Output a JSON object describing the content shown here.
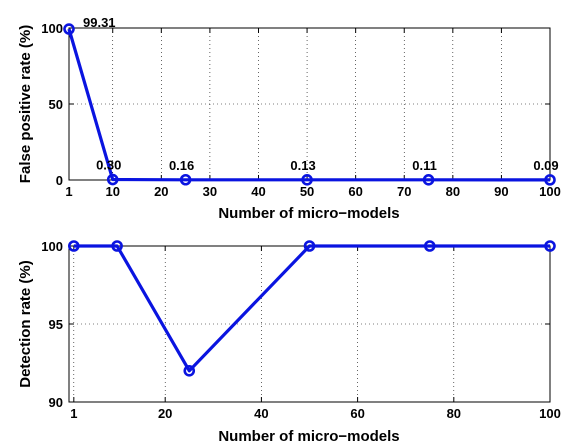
{
  "chart_data": [
    {
      "type": "line",
      "x": [
        1,
        10,
        25,
        50,
        75,
        100
      ],
      "series": [
        {
          "values": [
            99.31,
            0.3,
            0.16,
            0.13,
            0.11,
            0.09
          ],
          "color": "#0a14e0"
        }
      ],
      "data_labels": [
        "99.31",
        "0.30",
        "0.16",
        "0.13",
        "0.11",
        "0.09"
      ],
      "xlabel": "Number of micro−models",
      "ylabel": "False positive rate (%)",
      "xlim": [
        1,
        100
      ],
      "ylim": [
        0,
        100
      ],
      "xticks": [
        1,
        10,
        20,
        30,
        40,
        50,
        60,
        70,
        80,
        90,
        100
      ],
      "yticks": [
        0,
        50,
        100
      ],
      "grid": true,
      "marker": "circle"
    },
    {
      "type": "line",
      "x": [
        1,
        10,
        25,
        50,
        75,
        100
      ],
      "series": [
        {
          "values": [
            100,
            100,
            92,
            100,
            100,
            100
          ],
          "color": "#0a14e0"
        }
      ],
      "xlabel": "Number of micro−models",
      "ylabel": "Detection rate (%)",
      "xlim": [
        0,
        100
      ],
      "ylim": [
        90,
        100
      ],
      "xticks": [
        1,
        20,
        40,
        60,
        80,
        100
      ],
      "yticks": [
        90,
        95,
        100
      ],
      "grid": true,
      "marker": "circle"
    }
  ]
}
